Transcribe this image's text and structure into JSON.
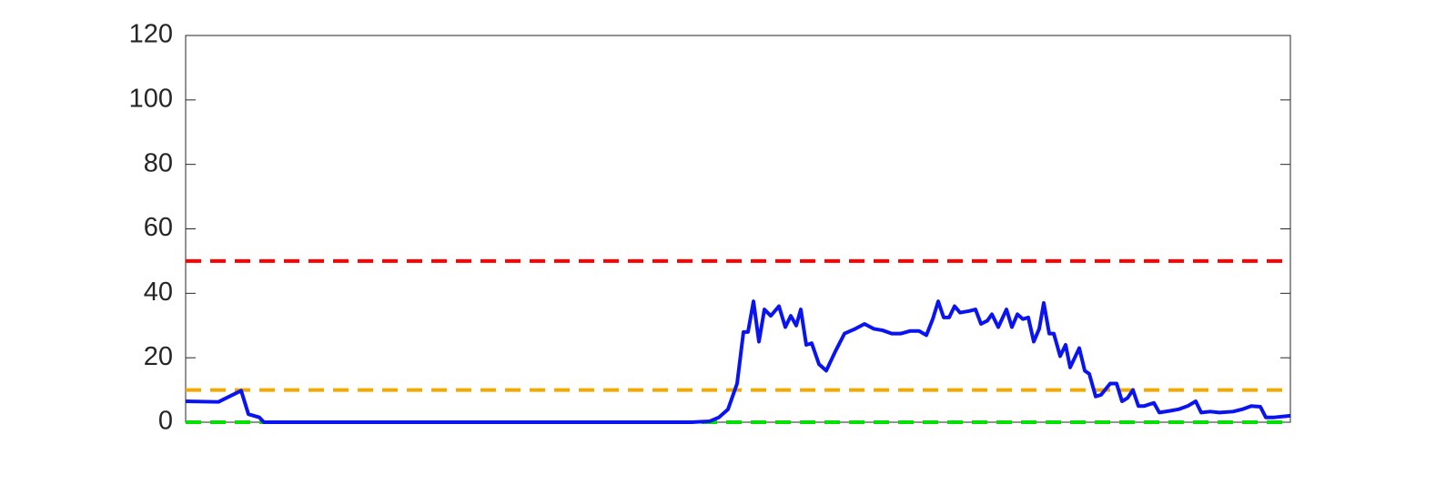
{
  "chart_data": {
    "type": "line",
    "x": [
      0,
      36,
      61,
      69,
      81,
      86,
      556,
      576,
      586,
      596,
      606,
      613,
      618,
      624,
      630,
      636,
      643,
      652,
      659,
      665,
      671,
      676,
      682,
      688,
      696,
      704,
      714,
      724,
      736,
      746,
      756,
      766,
      776,
      786,
      796,
      806,
      814,
      821,
      827,
      833,
      839,
      845,
      851,
      861,
      868,
      874,
      881,
      886,
      893,
      902,
      908,
      914,
      920,
      926,
      932,
      938,
      943,
      949,
      954,
      961,
      967,
      972,
      982,
      988,
      993,
      1000,
      1006,
      1016,
      1023,
      1029,
      1035,
      1041,
      1047,
      1053,
      1064,
      1070,
      1081,
      1091,
      1101,
      1110,
      1116,
      1126,
      1136,
      1151,
      1161,
      1171,
      1181,
      1187,
      1196,
      1214
    ],
    "series": [
      {
        "color": "#0a14f0",
        "values": [
          6.5,
          6.3,
          9.8,
          2.5,
          1.5,
          0,
          0,
          0.3,
          1.5,
          4,
          12,
          28,
          28,
          37.5,
          25,
          35,
          33,
          36,
          29.5,
          33,
          30,
          35,
          24,
          24.5,
          18,
          16,
          22,
          27.5,
          29,
          30.5,
          29,
          28.5,
          27.5,
          27.5,
          28.3,
          28.3,
          27,
          32,
          37.5,
          32.5,
          32.5,
          36,
          34,
          34.5,
          35,
          30.5,
          31.5,
          33.5,
          29.5,
          35,
          29.5,
          33.5,
          32,
          32.5,
          25,
          29,
          37,
          27.5,
          27.5,
          20.5,
          24,
          17,
          23,
          16,
          15,
          8,
          8.5,
          12,
          12,
          6.5,
          7.5,
          10,
          5,
          5,
          6,
          3,
          3.5,
          4,
          5,
          6.5,
          3,
          3.3,
          3,
          3.3,
          4,
          5,
          4.8,
          1.5,
          1.5,
          2
        ]
      }
    ],
    "reference_lines": [
      {
        "value": 50,
        "color": "#ff0000"
      },
      {
        "value": 10,
        "color": "#f2a900"
      },
      {
        "value": 0,
        "color": "#00e000"
      }
    ],
    "xlim": [
      0,
      1214
    ],
    "ylim": [
      0,
      120
    ],
    "yticks": [
      0,
      20,
      40,
      60,
      80,
      100,
      120
    ],
    "box": true
  }
}
